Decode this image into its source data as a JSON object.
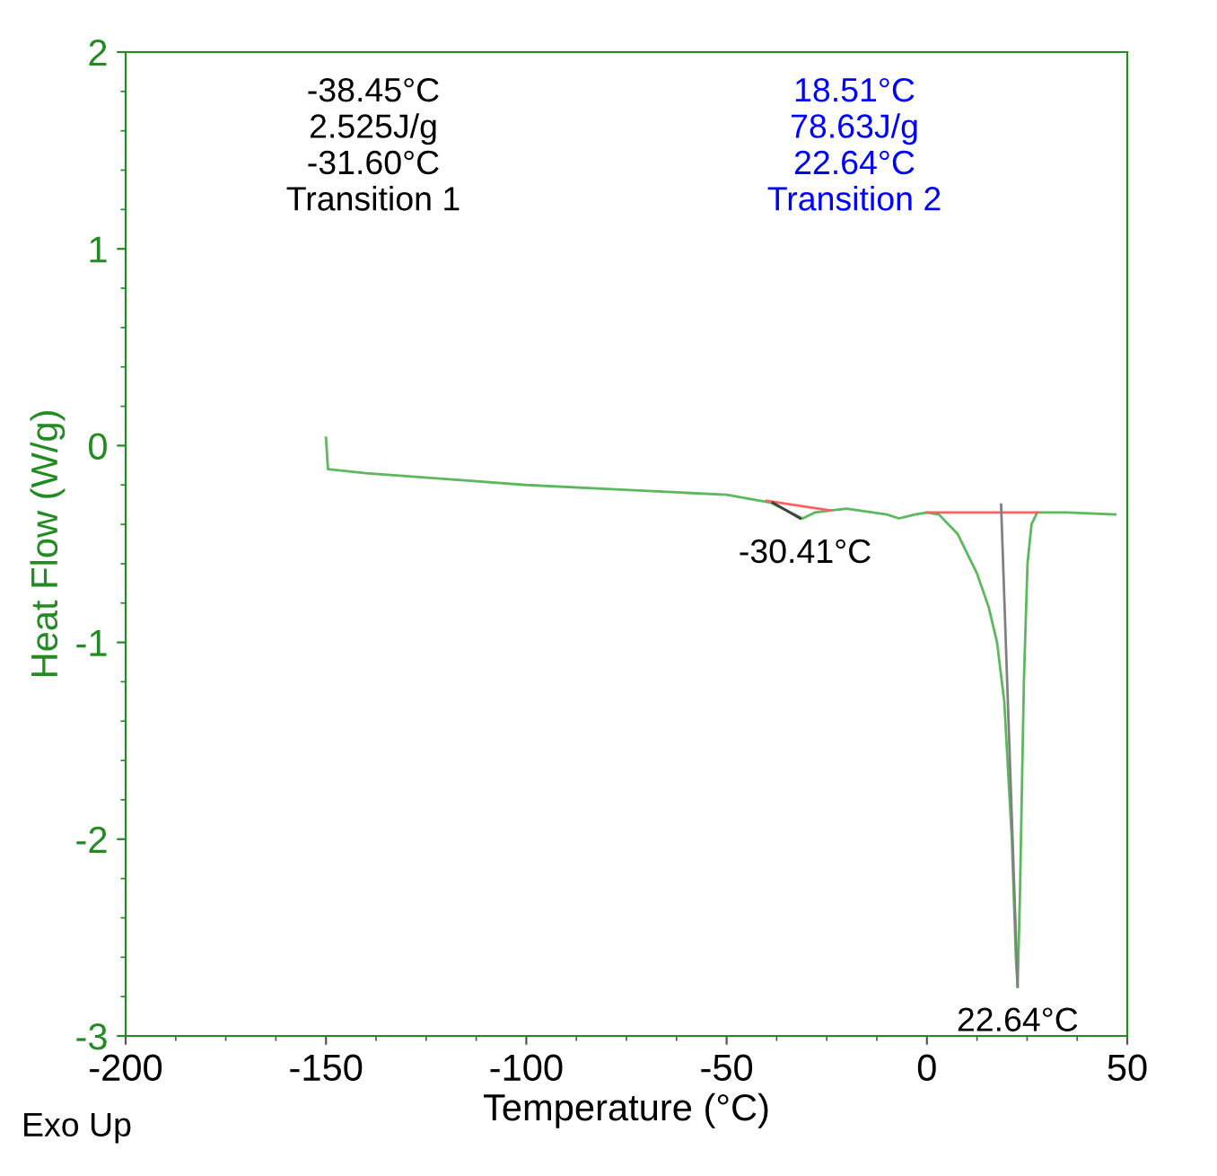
{
  "chart_data": {
    "type": "line",
    "xlabel": "Temperature (°C)",
    "ylabel": "Heat Flow (W/g)",
    "xlim": [
      -200,
      50
    ],
    "xticks": [
      -200,
      -150,
      -100,
      -50,
      0,
      50
    ],
    "ylim": [
      -3,
      2
    ],
    "yticks": [
      -3,
      -2,
      -1,
      0,
      1,
      2
    ],
    "grid": false,
    "legend": false,
    "series": [
      {
        "color": "#5cb85c",
        "x": [
          -150,
          -149.5,
          -140,
          -120,
          -100,
          -80,
          -60,
          -50,
          -39,
          -35,
          -31,
          -28,
          -24,
          -20,
          -10,
          -7,
          -3,
          0,
          3,
          7.7,
          12.5,
          15.4,
          17.5,
          19.3,
          21.2,
          22.2,
          22.64,
          23.2,
          24.2,
          25.1,
          26.1,
          27.5,
          35,
          47
        ],
        "values": [
          0.04,
          -0.12,
          -0.14,
          -0.17,
          -0.2,
          -0.22,
          -0.24,
          -0.25,
          -0.29,
          -0.33,
          -0.37,
          -0.34,
          -0.33,
          -0.32,
          -0.35,
          -0.37,
          -0.35,
          -0.34,
          -0.35,
          -0.45,
          -0.65,
          -0.82,
          -1.0,
          -1.3,
          -2.0,
          -2.6,
          -2.75,
          -2.3,
          -1.2,
          -0.6,
          -0.4,
          -0.34,
          -0.34,
          -0.35
        ]
      },
      {
        "color": "#ff6060",
        "x": [
          -40,
          -24
        ],
        "values": [
          -0.28,
          -0.33
        ]
      },
      {
        "color": "#ff6060",
        "x": [
          0,
          27.5
        ],
        "values": [
          -0.34,
          -0.34
        ]
      },
      {
        "color": "#808080",
        "x": [
          18.51,
          22.64
        ],
        "values": [
          -0.3,
          -2.75
        ]
      },
      {
        "color": "#404040",
        "x": [
          -38.45,
          -31.6
        ],
        "values": [
          -0.29,
          -0.37
        ]
      }
    ],
    "annotations": [
      "-38.45°C\n2.525J/g\n-31.60°C\nTransition 1",
      "18.51°C\n78.63J/g\n22.64°C\nTransition 2",
      {
        "text": "-30.41°C",
        "x": -30.41,
        "y": -0.37
      },
      {
        "text": "22.64°C",
        "x": 22.64,
        "y": -2.75
      },
      "Exo Up"
    ]
  }
}
